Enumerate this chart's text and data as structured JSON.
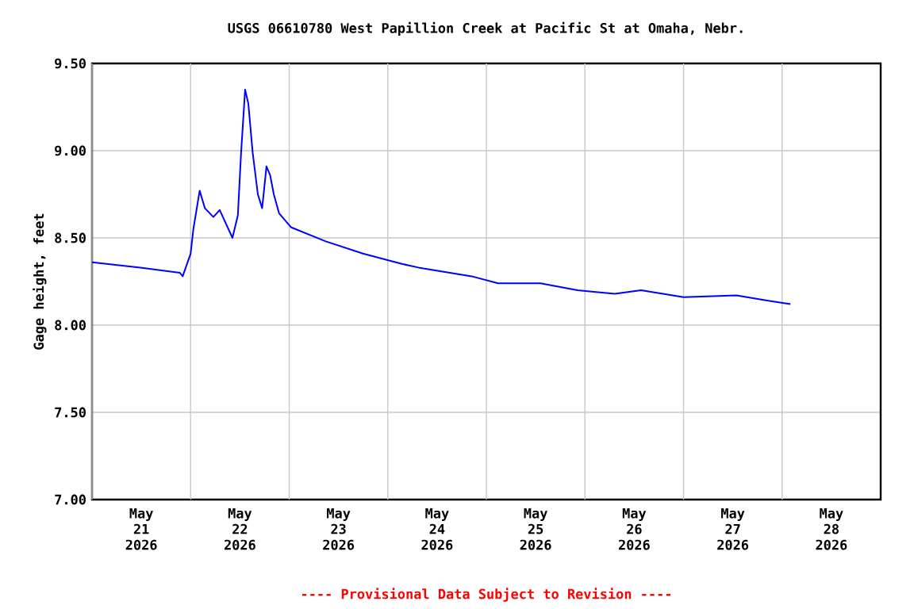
{
  "chart_data": {
    "type": "line",
    "title": "USGS 06610780 West Papillion Creek at Pacific St at Omaha, Nebr.",
    "ylabel": "Gage height, feet",
    "x": [
      "2026-05-21T00:00",
      "2026-05-21T11:45",
      "2026-05-21T21:24",
      "2026-05-21T22:04",
      "2026-05-22T00:00",
      "2026-05-22T00:40",
      "2026-05-22T02:12",
      "2026-05-22T03:29",
      "2026-05-22T05:32",
      "2026-05-22T07:05",
      "2026-05-22T08:38",
      "2026-05-22T10:11",
      "2026-05-22T11:30",
      "2026-05-22T12:16",
      "2026-05-22T13:16",
      "2026-05-22T14:03",
      "2026-05-22T15:06",
      "2026-05-22T16:22",
      "2026-05-22T17:25",
      "2026-05-22T18:28",
      "2026-05-22T19:21",
      "2026-05-22T20:15",
      "2026-05-22T21:33",
      "2026-05-23T00:30",
      "2026-05-23T08:54",
      "2026-05-23T17:56",
      "2026-05-24T03:36",
      "2026-05-24T07:28",
      "2026-05-24T20:24",
      "2026-05-25T02:50",
      "2026-05-25T13:09",
      "2026-05-25T22:11",
      "2026-05-26T07:15",
      "2026-05-26T13:40",
      "2026-05-27T00:00",
      "2026-05-27T12:53",
      "2026-05-27T20:38",
      "2026-05-28T02:02"
    ],
    "values": [
      8.36,
      8.33,
      8.3,
      8.28,
      8.41,
      8.55,
      8.77,
      8.67,
      8.62,
      8.66,
      8.58,
      8.5,
      8.63,
      8.98,
      9.35,
      9.27,
      8.99,
      8.75,
      8.67,
      8.91,
      8.86,
      8.75,
      8.64,
      8.56,
      8.48,
      8.41,
      8.35,
      8.33,
      8.28,
      8.24,
      8.24,
      8.2,
      8.18,
      8.2,
      8.16,
      8.17,
      8.14,
      8.12
    ],
    "color": "#0000ff",
    "xlim": [
      "2026-05-21T00:00",
      "2026-05-29T00:00"
    ],
    "xticks": [
      {
        "value": "2026-05-21T00:00",
        "label": null
      },
      {
        "value": "2026-05-22T00:00",
        "label": null
      },
      {
        "value": "2026-05-23T00:00",
        "label": null
      },
      {
        "value": "2026-05-24T00:00",
        "label": null
      },
      {
        "value": "2026-05-25T00:00",
        "label": null
      },
      {
        "value": "2026-05-26T00:00",
        "label": null
      },
      {
        "value": "2026-05-27T00:00",
        "label": null
      },
      {
        "value": "2026-05-28T00:00",
        "label": null
      },
      {
        "value": "2026-05-21T12:00",
        "label": "May 21 2026"
      },
      {
        "value": "2026-05-22T12:00",
        "label": "May 22 2026"
      },
      {
        "value": "2026-05-23T12:00",
        "label": "May 23 2026"
      },
      {
        "value": "2026-05-24T12:00",
        "label": "May 24 2026"
      },
      {
        "value": "2026-05-25T12:00",
        "label": "May 25 2026"
      },
      {
        "value": "2026-05-26T12:00",
        "label": "May 26 2026"
      },
      {
        "value": "2026-05-27T12:00",
        "label": "May 27 2026"
      },
      {
        "value": "2026-05-28T12:00",
        "label": "May 28 2026"
      }
    ],
    "ylim": [
      7.0,
      9.5
    ],
    "yticks": [
      {
        "value": 7.0,
        "label": "7.00"
      },
      {
        "value": 7.5,
        "label": "7.50"
      },
      {
        "value": 8.0,
        "label": "8.00"
      },
      {
        "value": 8.5,
        "label": "8.50"
      },
      {
        "value": 9.0,
        "label": "9.00"
      },
      {
        "value": 9.5,
        "label": "9.50"
      }
    ],
    "grid": true,
    "annotations": [
      "---- Provisional Data Subject to Revision ----"
    ]
  }
}
